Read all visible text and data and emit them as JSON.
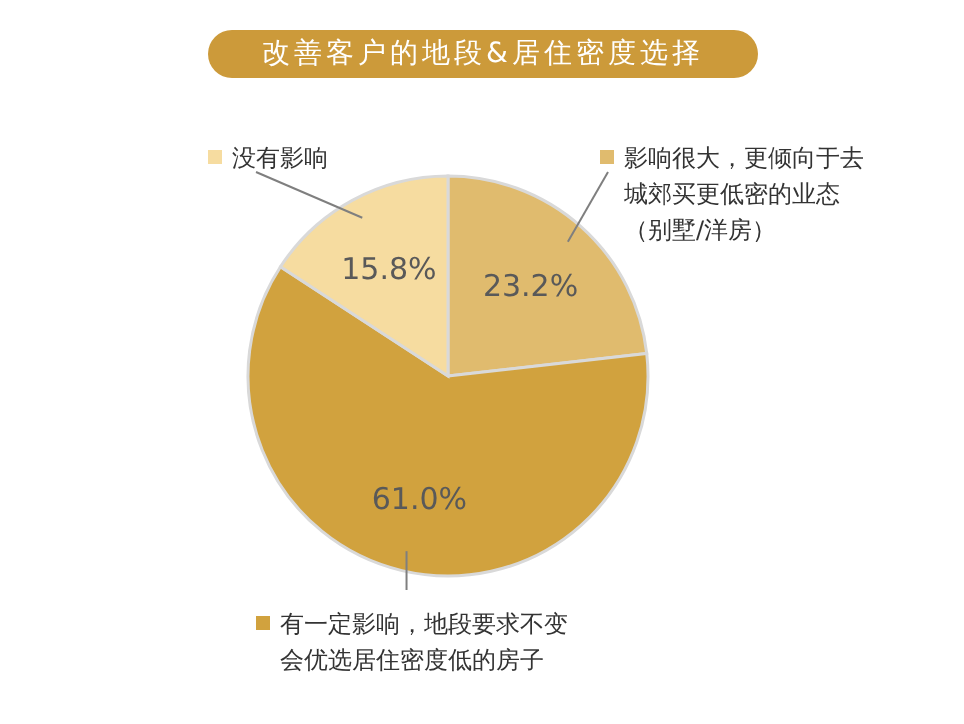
{
  "chart_data": {
    "type": "pie",
    "title": "改善客户的地段&居住密度选择",
    "categories": [
      "影响很大，更倾向于去城郊买更低密的业态（别墅/洋房）",
      "有一定影响，地段要求不变会优选居住密度低的房子",
      "没有影响"
    ],
    "values": [
      23.2,
      61.0,
      15.8
    ],
    "value_labels": [
      "23.2%",
      "61.0%",
      "15.8%"
    ],
    "colors": [
      "#e0bb6e",
      "#d1a23e",
      "#f6dca0"
    ],
    "legend": "bottom right"
  }
}
